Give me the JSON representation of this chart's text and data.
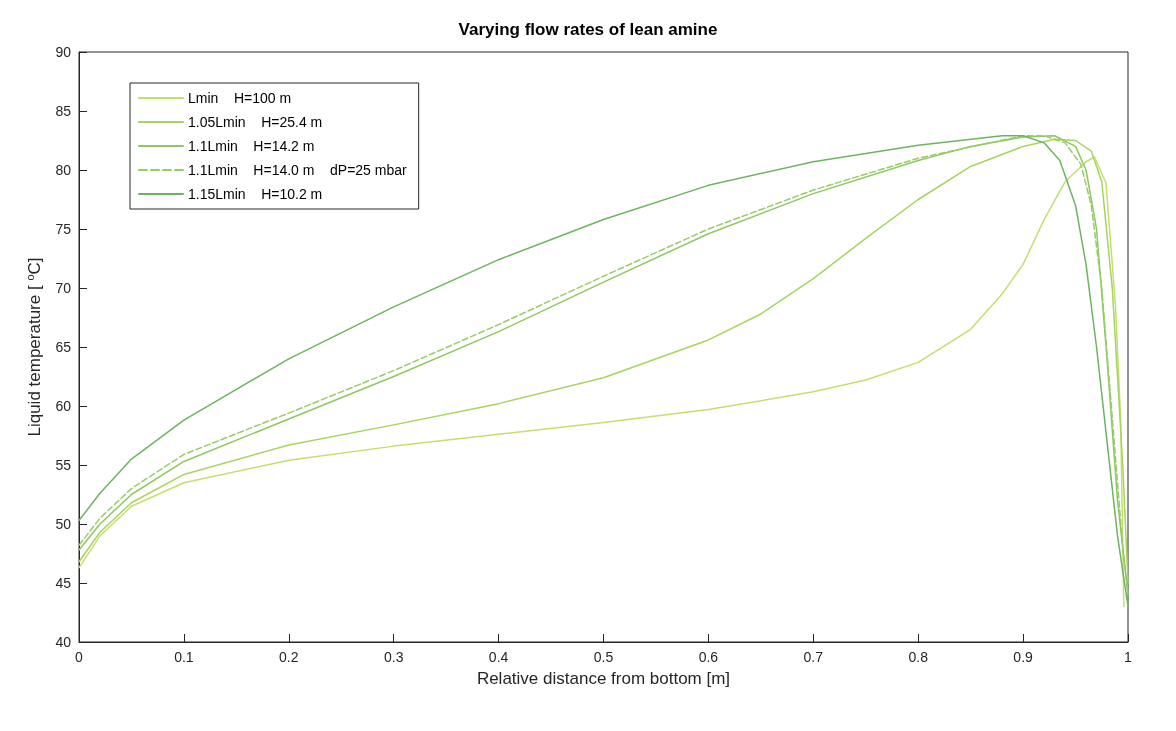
{
  "chart_data": {
    "type": "line",
    "title": "Varying flow rates of lean amine",
    "xlabel": "Relative distance from bottom [m]",
    "ylabel": "Liquid temperature [ $^{o}$C]",
    "xlim": [
      0,
      1
    ],
    "ylim": [
      40,
      90
    ],
    "xticks": [
      0,
      0.1,
      0.2,
      0.3,
      0.4,
      0.5,
      0.6,
      0.7,
      0.8,
      0.9,
      1
    ],
    "yticks": [
      40,
      45,
      50,
      55,
      60,
      65,
      70,
      75,
      80,
      85,
      90
    ],
    "legend": "top left",
    "marker": "none",
    "line_style": "solid",
    "series": [
      {
        "name": "Lmin    H=100 m",
        "color": "#c2e06b",
        "x": [
          0,
          0.02,
          0.05,
          0.1,
          0.2,
          0.3,
          0.4,
          0.5,
          0.6,
          0.7,
          0.75,
          0.8,
          0.85,
          0.88,
          0.9,
          0.92,
          0.94,
          0.96,
          0.968,
          0.979,
          0.988,
          0.993,
          0.996
        ],
        "values": [
          46.3,
          49,
          51.5,
          53.5,
          55.4,
          56.6,
          57.6,
          58.6,
          59.7,
          61.2,
          62.2,
          63.7,
          66.5,
          69.5,
          72,
          75.8,
          79,
          80.7,
          81.1,
          78.9,
          68.6,
          58.9,
          43
        ]
      },
      {
        "name": "1.05Lmin    H=25.4 m",
        "color": "#a6d45e",
        "x": [
          0,
          0.02,
          0.05,
          0.1,
          0.2,
          0.3,
          0.4,
          0.5,
          0.6,
          0.65,
          0.7,
          0.75,
          0.8,
          0.85,
          0.9,
          0.93,
          0.95,
          0.965,
          0.975,
          0.985,
          0.995,
          1
        ],
        "values": [
          46.8,
          49.3,
          51.8,
          54.2,
          56.7,
          58.4,
          60.2,
          62.4,
          65.6,
          67.8,
          70.8,
          74.2,
          77.5,
          80.3,
          82,
          82.6,
          82.5,
          81.6,
          79,
          70,
          55,
          45
        ]
      },
      {
        "name": "1.1Lmin    H=14.2 m",
        "color": "#8dc862",
        "x": [
          0,
          0.02,
          0.05,
          0.1,
          0.2,
          0.3,
          0.4,
          0.5,
          0.6,
          0.7,
          0.8,
          0.85,
          0.9,
          0.93,
          0.95,
          0.96,
          0.97,
          0.98,
          0.99,
          1
        ],
        "values": [
          47.8,
          50,
          52.5,
          55.3,
          58.9,
          62.5,
          66.3,
          70.5,
          74.6,
          78,
          80.8,
          82,
          82.8,
          82.9,
          82,
          80,
          75,
          64,
          52,
          44
        ]
      },
      {
        "name": "1.1Lmin    H=14.0 m    dP=25 mbar",
        "color": "#98cc68",
        "line_style": "dashed",
        "x": [
          0,
          0.02,
          0.05,
          0.1,
          0.2,
          0.3,
          0.4,
          0.5,
          0.6,
          0.7,
          0.8,
          0.9,
          0.92,
          0.94,
          0.955,
          0.965,
          0.975,
          0.985,
          0.995,
          1
        ],
        "values": [
          48.2,
          50.5,
          53,
          55.9,
          59.4,
          63,
          66.9,
          71,
          75,
          78.3,
          81,
          82.9,
          82.9,
          82.3,
          80.5,
          77,
          70,
          59,
          48,
          44
        ]
      },
      {
        "name": "1.15Lmin    H=10.2 m",
        "color": "#6db460",
        "x": [
          0,
          0.02,
          0.05,
          0.1,
          0.2,
          0.3,
          0.4,
          0.5,
          0.6,
          0.7,
          0.8,
          0.88,
          0.9,
          0.92,
          0.935,
          0.95,
          0.96,
          0.97,
          0.98,
          0.99,
          1
        ],
        "values": [
          50.3,
          52.6,
          55.5,
          58.8,
          64,
          68.4,
          72.4,
          75.8,
          78.7,
          80.7,
          82.1,
          82.9,
          82.9,
          82.3,
          80.8,
          77,
          72,
          65,
          57,
          49,
          43
        ]
      }
    ]
  }
}
